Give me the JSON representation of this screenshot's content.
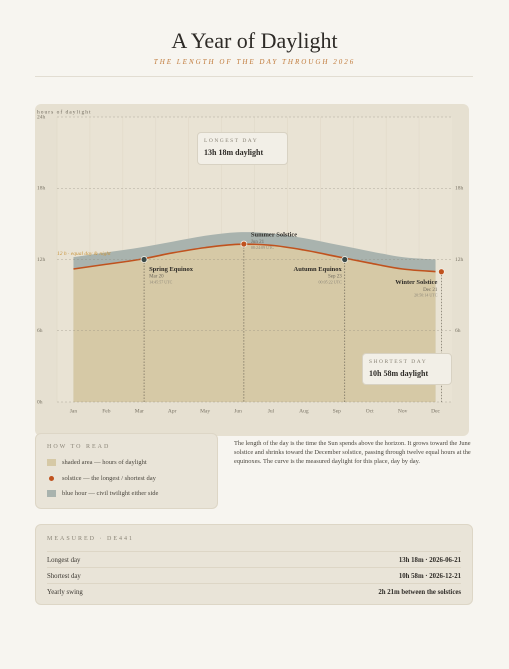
{
  "header": {
    "title": "A Year of Daylight",
    "subtitle": "THE LENGTH OF THE DAY THROUGH 2026"
  },
  "chart_data": {
    "type": "area",
    "y_label": "hours of daylight",
    "categories": [
      "Jan",
      "Feb",
      "Mar",
      "Apr",
      "May",
      "Jun",
      "Jul",
      "Aug",
      "Sep",
      "Oct",
      "Nov",
      "Dec"
    ],
    "series": [
      {
        "name": "shaded area — hours of daylight",
        "color": "#d6c9a6",
        "line_color": "#c0521e",
        "values": [
          11.2,
          11.6,
          12.0,
          12.55,
          13.0,
          13.28,
          13.2,
          12.8,
          12.25,
          11.7,
          11.2,
          10.98
        ]
      },
      {
        "name": "blue hour — civil twilight either side",
        "color": "#a9b3ae",
        "values": [
          12.2,
          12.6,
          13.0,
          13.5,
          14.0,
          14.3,
          14.2,
          13.8,
          13.25,
          12.7,
          12.2,
          12.0
        ]
      }
    ],
    "ylim": [
      0,
      24
    ],
    "yticks": [
      {
        "value": 0,
        "label": "0h"
      },
      {
        "value": 6,
        "label": "6h"
      },
      {
        "value": 12,
        "label": "12h"
      },
      {
        "value": 18,
        "label": "18h"
      },
      {
        "value": 24,
        "label": "24h"
      }
    ],
    "grid": true,
    "reference": {
      "value": 12,
      "label": "12 h · equal day & night",
      "color": "#c8953e"
    },
    "annotations": [
      {
        "label": "Spring Equinox",
        "date": "Mar 20",
        "time": "14:45:57 UTC",
        "value": 12.0,
        "color": "#3b4a48"
      },
      {
        "label": "Summer Solstice",
        "date": "Jun 21",
        "time": "08:24:09 UTC",
        "value": 13.3,
        "color": "#c0521e"
      },
      {
        "label": "Autumn Equinox",
        "date": "Sep 23",
        "time": "00:05:22 UTC",
        "value": 12.0,
        "color": "#3b4a48"
      },
      {
        "label": "Winter Solstice",
        "date": "Dec 21",
        "time": "20:50:14 UTC",
        "value": 10.97,
        "color": "#c0521e"
      }
    ],
    "callouts": [
      {
        "title": "LONGEST DAY",
        "text": "13h 18m daylight"
      },
      {
        "title": "SHORTEST DAY",
        "text": "10h 58m daylight"
      }
    ]
  },
  "how_to_read": {
    "title": "HOW TO READ",
    "solstice_item": "solstice — the longest / shortest day"
  },
  "description": "The length of the day is the time the Sun spends above the horizon. It grows toward the June solstice and shrinks toward the December solstice, passing through twelve equal hours at the equinoxes. The curve is the measured daylight for this place, day by day.",
  "measured": {
    "title": "MEASURED · DE441",
    "rows": [
      [
        "Longest day",
        "13h 18m · 2026-06-21"
      ],
      [
        "Shortest day",
        "10h 58m · 2026-12-21"
      ],
      [
        "Yearly swing",
        "2h 21m between the solstices"
      ]
    ]
  }
}
